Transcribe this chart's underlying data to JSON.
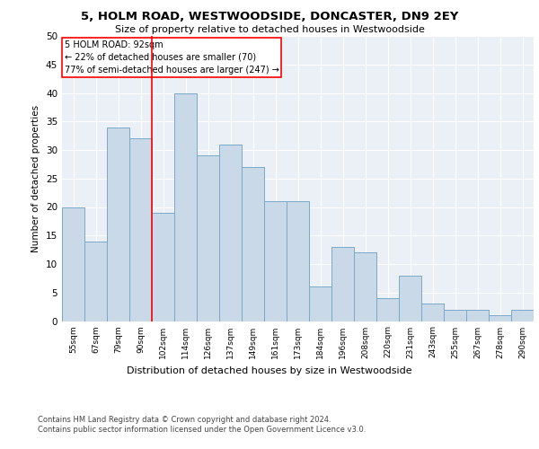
{
  "title": "5, HOLM ROAD, WESTWOODSIDE, DONCASTER, DN9 2EY",
  "subtitle": "Size of property relative to detached houses in Westwoodside",
  "xlabel": "Distribution of detached houses by size in Westwoodside",
  "ylabel": "Number of detached properties",
  "categories": [
    "55sqm",
    "67sqm",
    "79sqm",
    "90sqm",
    "102sqm",
    "114sqm",
    "126sqm",
    "137sqm",
    "149sqm",
    "161sqm",
    "173sqm",
    "184sqm",
    "196sqm",
    "208sqm",
    "220sqm",
    "231sqm",
    "243sqm",
    "255sqm",
    "267sqm",
    "278sqm",
    "290sqm"
  ],
  "values": [
    20,
    14,
    34,
    32,
    19,
    40,
    29,
    31,
    27,
    21,
    21,
    6,
    13,
    12,
    4,
    8,
    3,
    2,
    2,
    1,
    2
  ],
  "bar_color": "#c9d9e8",
  "bar_edge_color": "#7aaac8",
  "vline_x": 3.5,
  "vline_color": "red",
  "annotation_text": "5 HOLM ROAD: 92sqm\n← 22% of detached houses are smaller (70)\n77% of semi-detached houses are larger (247) →",
  "annotation_box_color": "white",
  "annotation_box_edge_color": "red",
  "ylim": [
    0,
    50
  ],
  "yticks": [
    0,
    5,
    10,
    15,
    20,
    25,
    30,
    35,
    40,
    45,
    50
  ],
  "background_color": "#eaf0f6",
  "footer_line1": "Contains HM Land Registry data © Crown copyright and database right 2024.",
  "footer_line2": "Contains public sector information licensed under the Open Government Licence v3.0."
}
